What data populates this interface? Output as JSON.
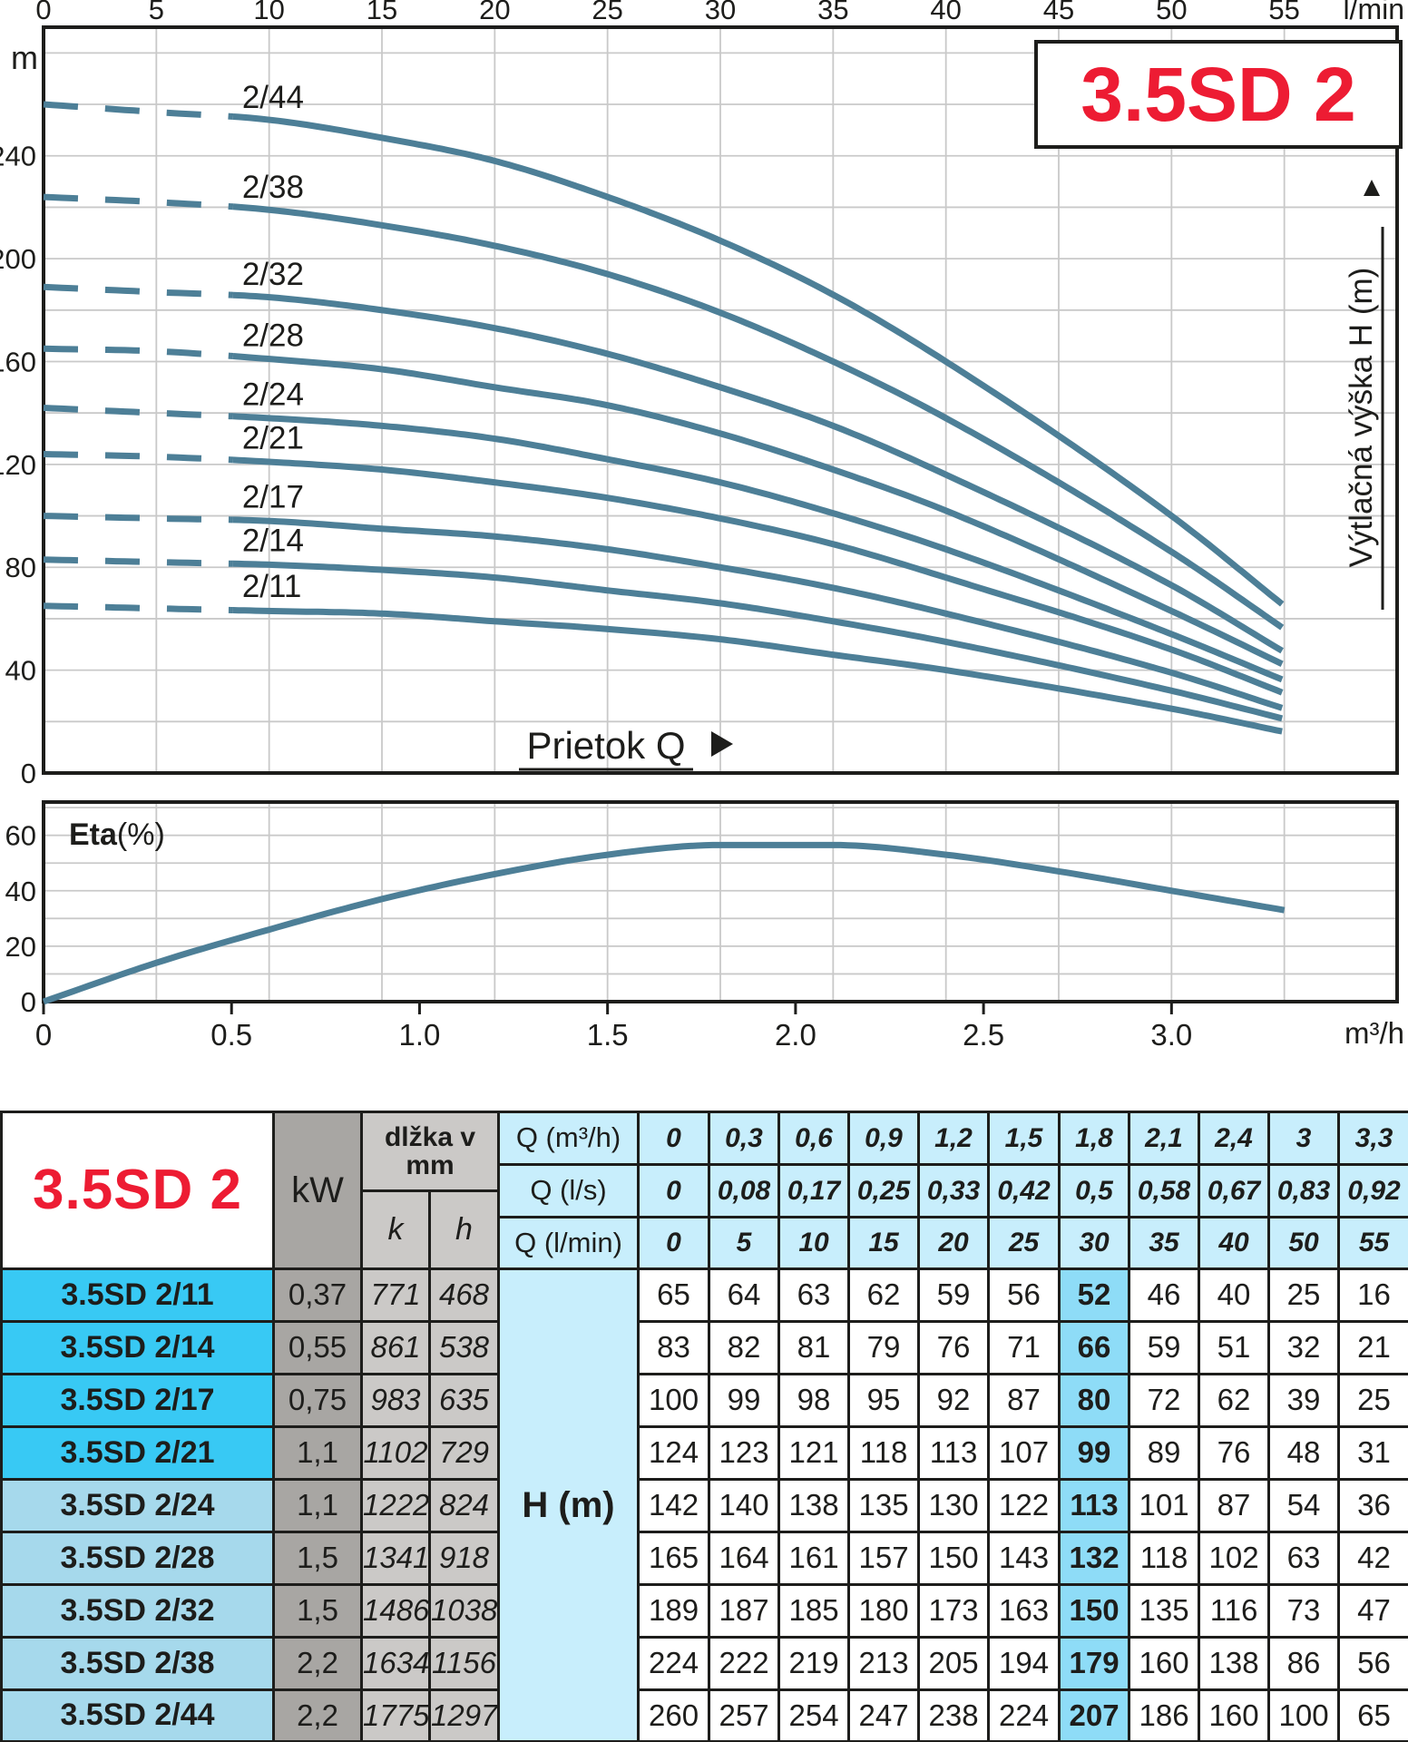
{
  "title_box": "3.5SD 2",
  "colors": {
    "accent_red": "#ed1c33",
    "curve_blue": "#4d7f97",
    "grid_gray": "#c9c9c9",
    "frame_dark": "#1d1d1b",
    "header_cyan": "#c8eefc",
    "highlight_cyan": "#8edcf7",
    "model_bright_cyan": "#38c9f4",
    "model_light_blue": "#a6d9ec",
    "gray_dark": "#a8a6a3",
    "gray_light": "#cbc9c7"
  },
  "chart_data": [
    {
      "type": "line",
      "id": "hq-curves",
      "title": "3.5SD 2",
      "x_axis_top": {
        "unit": "l/min",
        "ticks": [
          0,
          5,
          10,
          15,
          20,
          25,
          30,
          35,
          40,
          45,
          50,
          55
        ],
        "range_lmin": [
          0,
          60
        ]
      },
      "y_axis": {
        "unit": "m",
        "tick_labels": [
          0,
          40,
          80,
          120,
          160,
          200,
          240
        ],
        "grid_step_m": 20,
        "range_m": [
          0,
          290
        ]
      },
      "flow_axis_label": "Prietok Q",
      "head_axis_label": "Výtlačná výška H (m)",
      "dashed_until_lmin": 8.4,
      "q_lmin": [
        0,
        5,
        10,
        15,
        20,
        25,
        30,
        35,
        40,
        50,
        55
      ],
      "series": [
        {
          "name": "2/44",
          "H_m": [
            260,
            257,
            254,
            247,
            238,
            224,
            207,
            186,
            160,
            100,
            65
          ]
        },
        {
          "name": "2/38",
          "H_m": [
            224,
            222,
            219,
            213,
            205,
            194,
            179,
            160,
            138,
            86,
            56
          ]
        },
        {
          "name": "2/32",
          "H_m": [
            189,
            187,
            185,
            180,
            173,
            163,
            150,
            135,
            116,
            73,
            47
          ]
        },
        {
          "name": "2/28",
          "H_m": [
            165,
            164,
            161,
            157,
            150,
            143,
            132,
            118,
            102,
            63,
            42
          ]
        },
        {
          "name": "2/24",
          "H_m": [
            142,
            140,
            138,
            135,
            130,
            122,
            113,
            101,
            87,
            54,
            36
          ]
        },
        {
          "name": "2/21",
          "H_m": [
            124,
            123,
            121,
            118,
            113,
            107,
            99,
            89,
            76,
            48,
            31
          ]
        },
        {
          "name": "2/17",
          "H_m": [
            100,
            99,
            98,
            95,
            92,
            87,
            80,
            72,
            62,
            39,
            25
          ]
        },
        {
          "name": "2/14",
          "H_m": [
            83,
            82,
            81,
            79,
            76,
            71,
            66,
            59,
            51,
            32,
            21
          ]
        },
        {
          "name": "2/11",
          "H_m": [
            65,
            64,
            63,
            62,
            59,
            56,
            52,
            46,
            40,
            25,
            16
          ]
        }
      ],
      "legend_position": "labels-on-curves",
      "grid": true
    },
    {
      "type": "line",
      "id": "eta-curve",
      "y_label_bold": "Eta",
      "y_label_rest": "(%)",
      "x_axis": {
        "unit": "m³/h",
        "tick_labels": [
          "0",
          "0.5",
          "1.0",
          "1.5",
          "2.0",
          "2.5",
          "3.0"
        ],
        "tick_values": [
          0,
          0.5,
          1,
          1.5,
          2,
          2.5,
          3
        ],
        "range_m3h": [
          0,
          3.6
        ]
      },
      "y_axis": {
        "tick_labels": [
          0,
          20,
          40,
          60
        ],
        "grid_step_pct": 10,
        "range_pct": [
          0,
          72
        ]
      },
      "x_m3h": [
        0,
        0.3,
        0.6,
        0.9,
        1.2,
        1.5,
        1.8,
        2.1,
        2.4,
        2.7,
        3.0,
        3.3
      ],
      "eta_pct": [
        0,
        14,
        26,
        37,
        46,
        53,
        56.5,
        56.5,
        53,
        47,
        40,
        33
      ],
      "grid": true
    }
  ],
  "table": {
    "corner_title": "3.5SD 2",
    "col_kw": "kW",
    "col_len": "dlžka v mm",
    "col_k": "k",
    "col_h": "h",
    "q_rows": [
      {
        "label": "Q (m³/h)",
        "values": [
          "0",
          "0,3",
          "0,6",
          "0,9",
          "1,2",
          "1,5",
          "1,8",
          "2,1",
          "2,4",
          "3",
          "3,3"
        ]
      },
      {
        "label": "Q (l/s)",
        "values": [
          "0",
          "0,08",
          "0,17",
          "0,25",
          "0,33",
          "0,42",
          "0,5",
          "0,58",
          "0,67",
          "0,83",
          "0,92"
        ]
      },
      {
        "label": "Q (l/min)",
        "values": [
          "0",
          "5",
          "10",
          "15",
          "20",
          "25",
          "30",
          "35",
          "40",
          "50",
          "55"
        ]
      }
    ],
    "h_label": "H (m)",
    "highlight_col": 6,
    "rows": [
      {
        "model": "3.5SD 2/11",
        "kw": "0,37",
        "k": "771",
        "h": "468",
        "bright": true,
        "hm": [
          "65",
          "64",
          "63",
          "62",
          "59",
          "56",
          "52",
          "46",
          "40",
          "25",
          "16"
        ]
      },
      {
        "model": "3.5SD 2/14",
        "kw": "0,55",
        "k": "861",
        "h": "538",
        "bright": true,
        "hm": [
          "83",
          "82",
          "81",
          "79",
          "76",
          "71",
          "66",
          "59",
          "51",
          "32",
          "21"
        ]
      },
      {
        "model": "3.5SD 2/17",
        "kw": "0,75",
        "k": "983",
        "h": "635",
        "bright": true,
        "hm": [
          "100",
          "99",
          "98",
          "95",
          "92",
          "87",
          "80",
          "72",
          "62",
          "39",
          "25"
        ]
      },
      {
        "model": "3.5SD 2/21",
        "kw": "1,1",
        "k": "1102",
        "h": "729",
        "bright": true,
        "hm": [
          "124",
          "123",
          "121",
          "118",
          "113",
          "107",
          "99",
          "89",
          "76",
          "48",
          "31"
        ]
      },
      {
        "model": "3.5SD 2/24",
        "kw": "1,1",
        "k": "1222",
        "h": "824",
        "bright": false,
        "hm": [
          "142",
          "140",
          "138",
          "135",
          "130",
          "122",
          "113",
          "101",
          "87",
          "54",
          "36"
        ]
      },
      {
        "model": "3.5SD 2/28",
        "kw": "1,5",
        "k": "1341",
        "h": "918",
        "bright": false,
        "hm": [
          "165",
          "164",
          "161",
          "157",
          "150",
          "143",
          "132",
          "118",
          "102",
          "63",
          "42"
        ]
      },
      {
        "model": "3.5SD 2/32",
        "kw": "1,5",
        "k": "1486",
        "h": "1038",
        "bright": false,
        "hm": [
          "189",
          "187",
          "185",
          "180",
          "173",
          "163",
          "150",
          "135",
          "116",
          "73",
          "47"
        ]
      },
      {
        "model": "3.5SD 2/38",
        "kw": "2,2",
        "k": "1634",
        "h": "1156",
        "bright": false,
        "hm": [
          "224",
          "222",
          "219",
          "213",
          "205",
          "194",
          "179",
          "160",
          "138",
          "86",
          "56"
        ]
      },
      {
        "model": "3.5SD 2/44",
        "kw": "2,2",
        "k": "1775",
        "h": "1297",
        "bright": false,
        "hm": [
          "260",
          "257",
          "254",
          "247",
          "238",
          "224",
          "207",
          "186",
          "160",
          "100",
          "65"
        ]
      }
    ]
  }
}
